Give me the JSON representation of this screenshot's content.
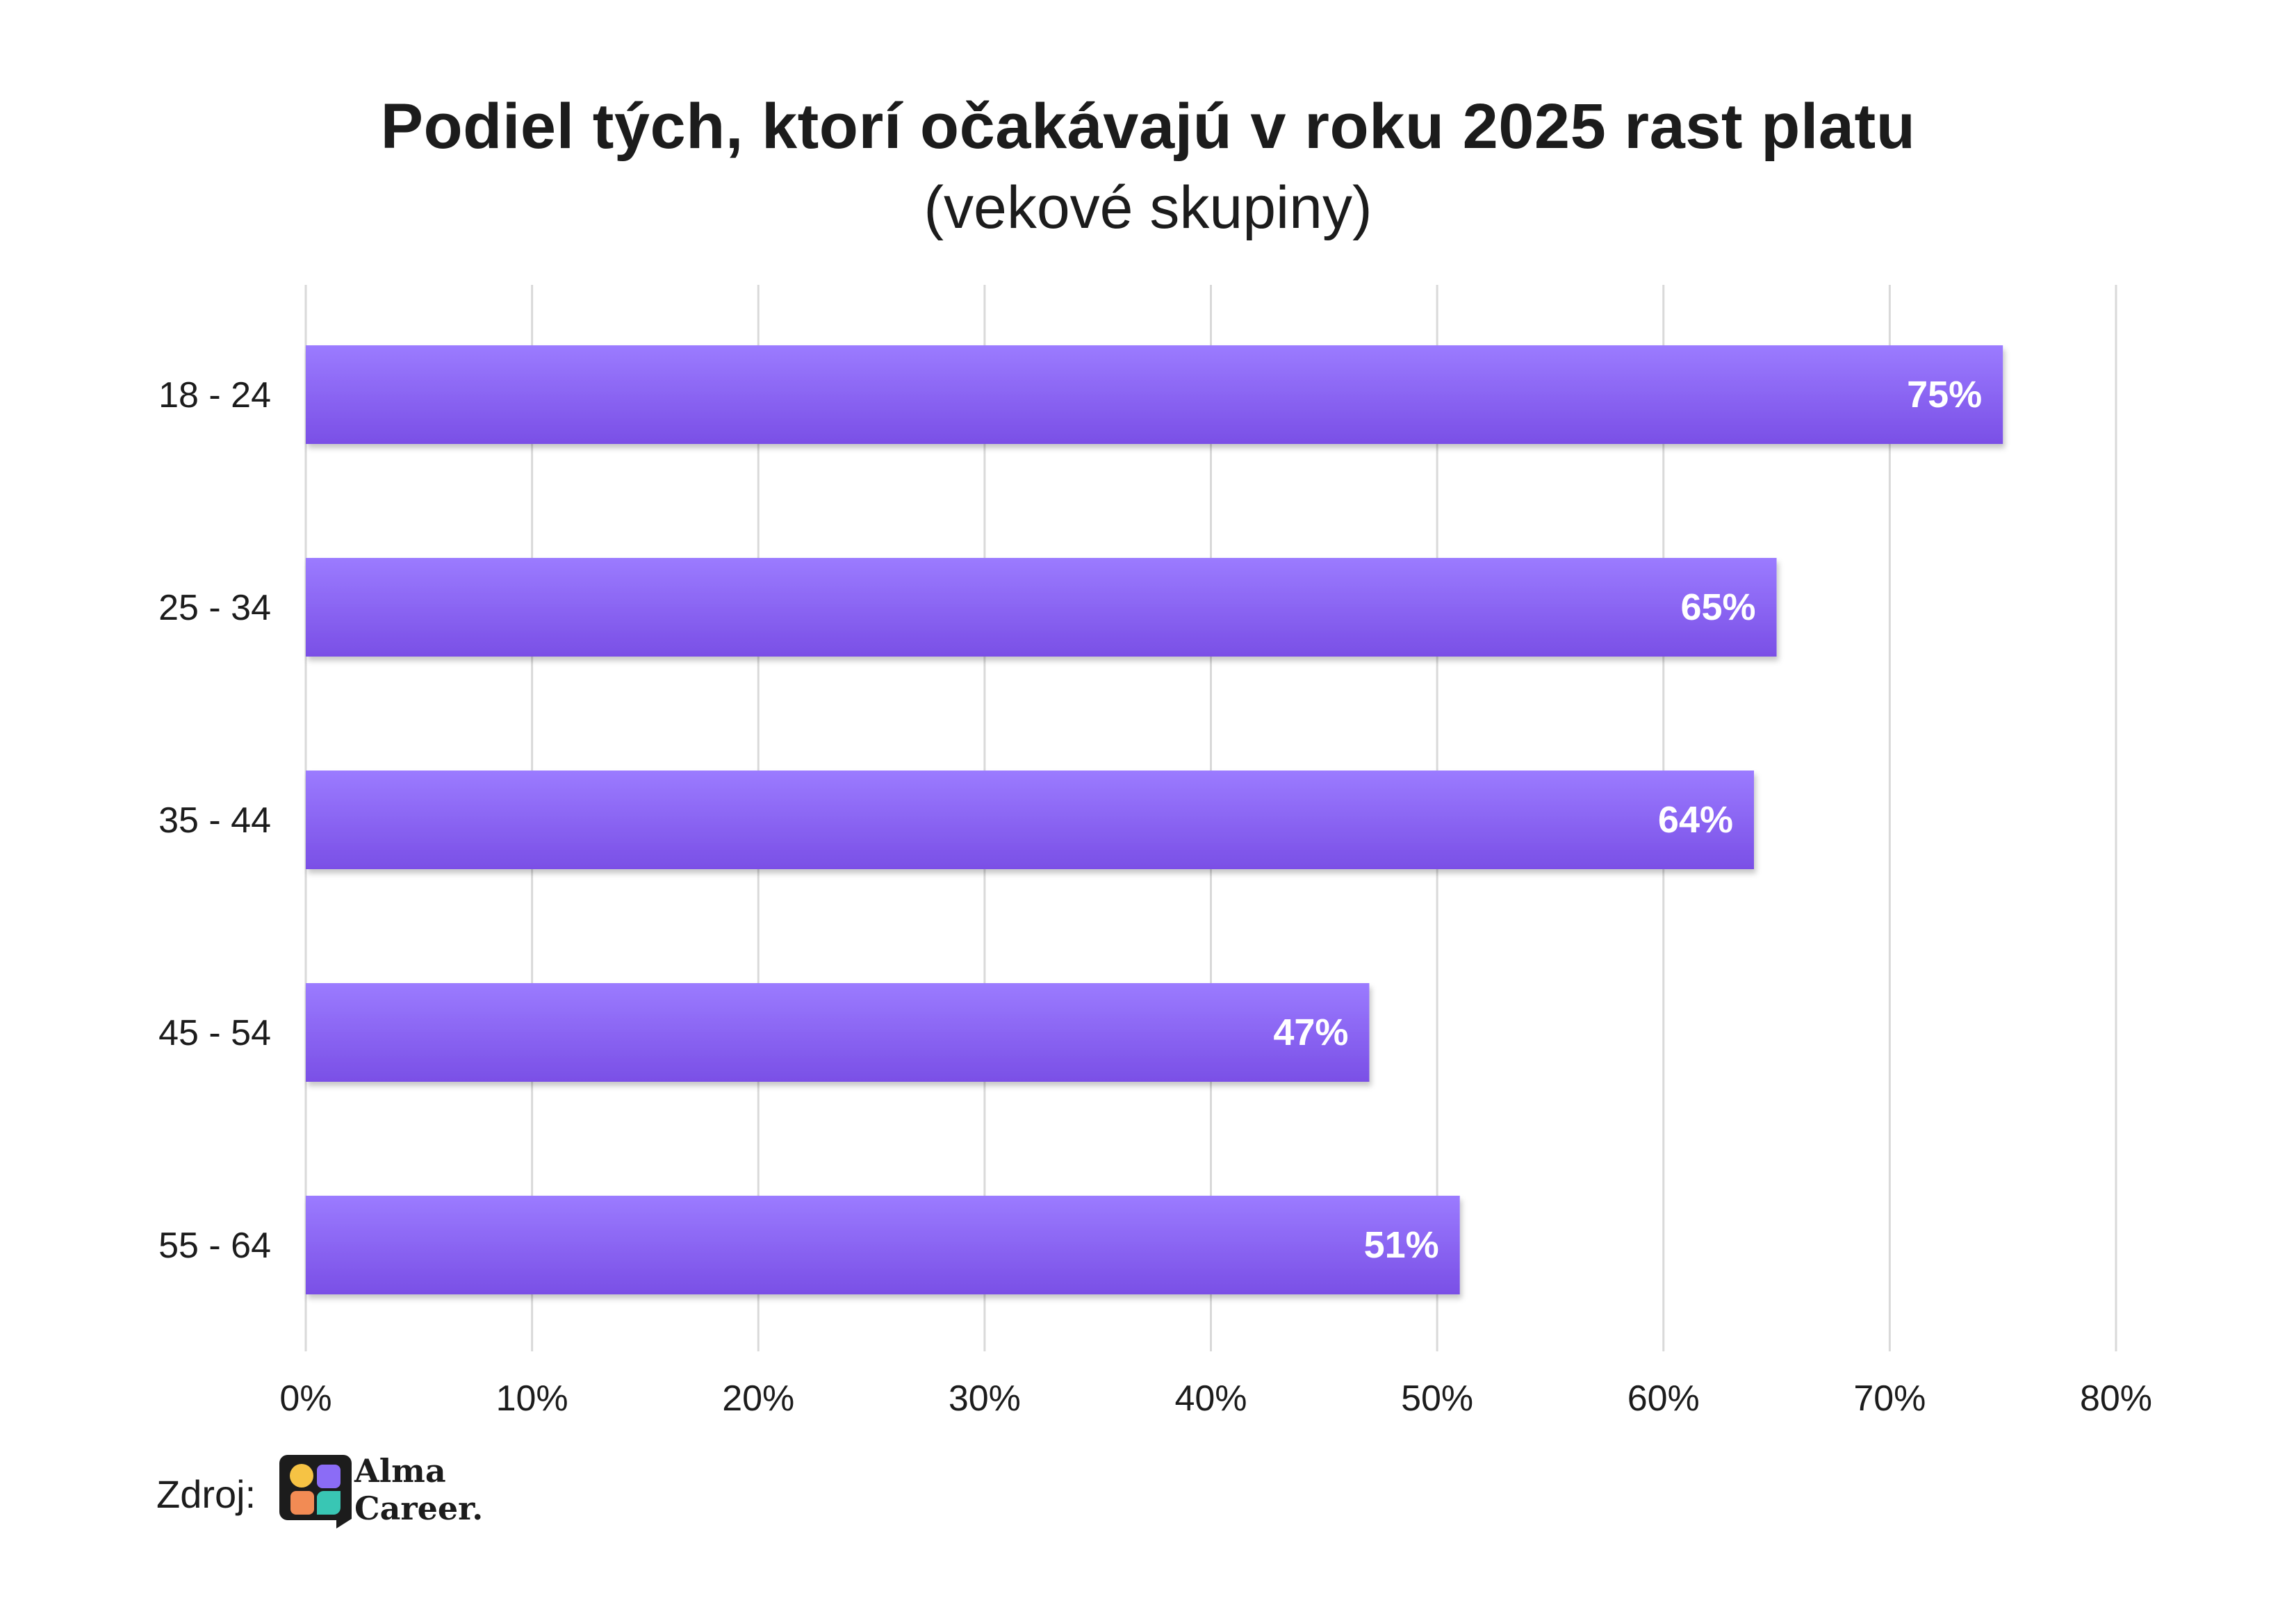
{
  "chart_data": {
    "type": "bar",
    "orientation": "horizontal",
    "title": "Podiel tých, ktorí očakávajú v roku 2025 rast platu",
    "subtitle": "(vekové skupiny)",
    "categories": [
      "18 - 24",
      "25 - 34",
      "35 - 44",
      "45 - 54",
      "55 - 64"
    ],
    "values": [
      75,
      65,
      64,
      47,
      51
    ],
    "data_labels": [
      "75%",
      "65%",
      "64%",
      "47%",
      "51%"
    ],
    "xlim": [
      0,
      80
    ],
    "x_ticks": [
      0,
      10,
      20,
      30,
      40,
      50,
      60,
      70,
      80
    ],
    "x_tick_labels": [
      "0%",
      "10%",
      "20%",
      "30%",
      "40%",
      "50%",
      "60%",
      "70%",
      "80%"
    ],
    "grid": true,
    "bar_color_top": "#9b7bff",
    "bar_color_bottom": "#7a4fe6"
  },
  "footer": {
    "source_label": "Zdroj:",
    "brand_line1": "Alma",
    "brand_line2": "Career."
  }
}
